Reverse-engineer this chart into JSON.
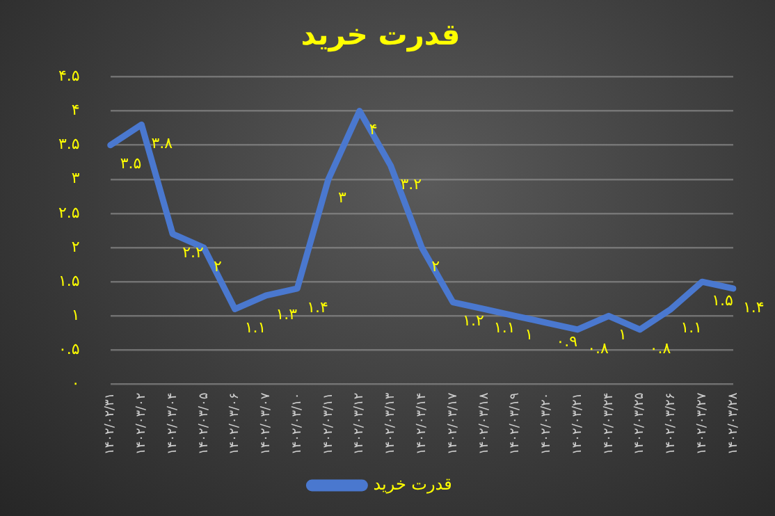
{
  "chart_data": {
    "type": "line",
    "title": "قدرت خرید",
    "categories": [
      "۱۴۰۲/۰۲/۳۱",
      "۱۴۰۲/۰۳/۰۲",
      "۱۴۰۲/۰۳/۰۴",
      "۱۴۰۲/۰۳/۰۵",
      "۱۴۰۲/۰۳/۰۶",
      "۱۴۰۲/۰۳/۰۷",
      "۱۴۰۲/۰۳/۱۰",
      "۱۴۰۲/۰۳/۱۱",
      "۱۴۰۲/۰۳/۱۲",
      "۱۴۰۲/۰۳/۱۳",
      "۱۴۰۲/۰۳/۱۴",
      "۱۴۰۲/۰۳/۱۷",
      "۱۴۰۲/۰۳/۱۸",
      "۱۴۰۲/۰۳/۱۹",
      "۱۴۰۲/۰۳/۲۰",
      "۱۴۰۲/۰۳/۲۱",
      "۱۴۰۲/۰۳/۲۴",
      "۱۴۰۲/۰۳/۲۵",
      "۱۴۰۲/۰۳/۲۶",
      "۱۴۰۲/۰۳/۲۷",
      "۱۴۰۲/۰۳/۲۸"
    ],
    "series": [
      {
        "name": "قدرت خرید",
        "color": "#4a78cf",
        "values": [
          3.5,
          3.8,
          2.2,
          2,
          1.1,
          1.3,
          1.4,
          3,
          4,
          3.2,
          2,
          1.2,
          1.1,
          1,
          0.9,
          0.8,
          1,
          0.8,
          1.1,
          1.5,
          1.4
        ],
        "value_labels": [
          "۳.۵",
          "۳.۸",
          "۲.۲",
          "۲",
          "۱.۱",
          "۱.۳",
          "۱.۴",
          "۳",
          "۴",
          "۳.۲",
          "۲",
          "۱.۲",
          "۱.۱",
          "۱",
          "۰.۹",
          "۰.۸",
          "۱",
          "۰.۸",
          "۱.۱",
          "۱.۵",
          "۱.۴"
        ]
      }
    ],
    "ylim": [
      0,
      4.5
    ],
    "yticks": [
      {
        "value": 0,
        "label": "۰"
      },
      {
        "value": 0.5,
        "label": "۰.۵"
      },
      {
        "value": 1,
        "label": "۱"
      },
      {
        "value": 1.5,
        "label": "۱.۵"
      },
      {
        "value": 2,
        "label": "۲"
      },
      {
        "value": 2.5,
        "label": "۲.۵"
      },
      {
        "value": 3,
        "label": "۳"
      },
      {
        "value": 3.5,
        "label": "۳.۵"
      },
      {
        "value": 4,
        "label": "۴"
      },
      {
        "value": 4.5,
        "label": "۴.۵"
      }
    ],
    "grid": "y",
    "legend": "bottom",
    "marker": "none",
    "line_style": "solid"
  }
}
